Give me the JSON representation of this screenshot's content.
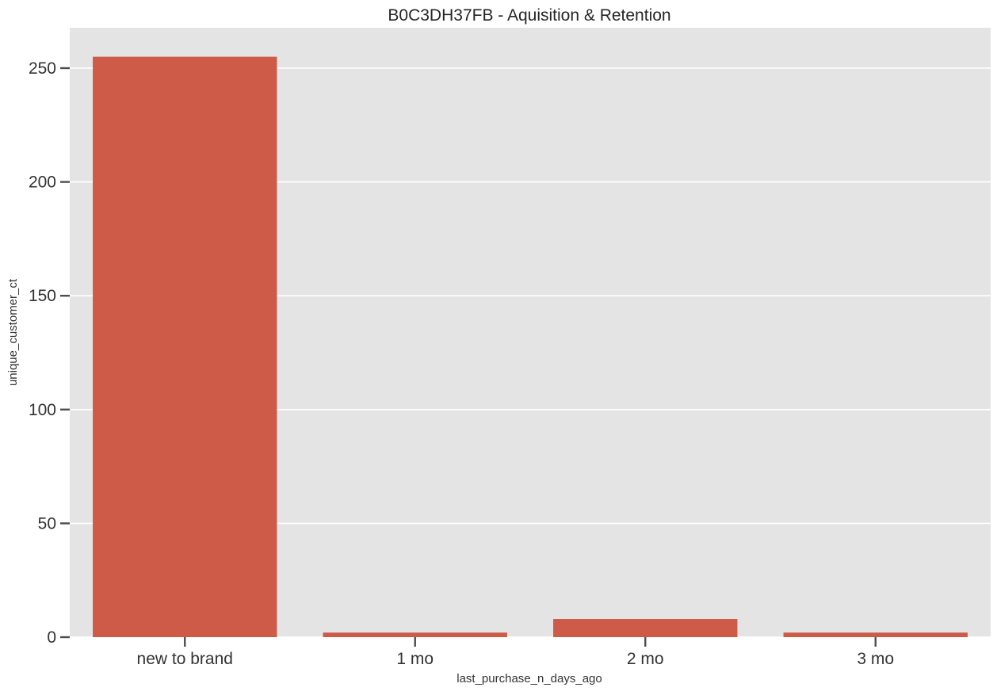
{
  "chart_data": {
    "type": "bar",
    "title": "B0C3DH37FB - Aquisition & Retention",
    "xlabel": "last_purchase_n_days_ago",
    "ylabel": "unique_customer_ct",
    "categories": [
      "new to brand",
      "1 mo",
      "2 mo",
      "3 mo"
    ],
    "values": [
      255,
      2,
      8,
      2
    ],
    "ylim": [
      0,
      267.75
    ],
    "yticks": [
      0,
      50,
      100,
      150,
      200,
      250
    ],
    "grid": true,
    "legend": "none",
    "colors": {
      "bar": "#cd5b47",
      "plot_background": "#e4e4e4",
      "grid": "#ffffff",
      "tick": "#4d4d4d"
    }
  }
}
